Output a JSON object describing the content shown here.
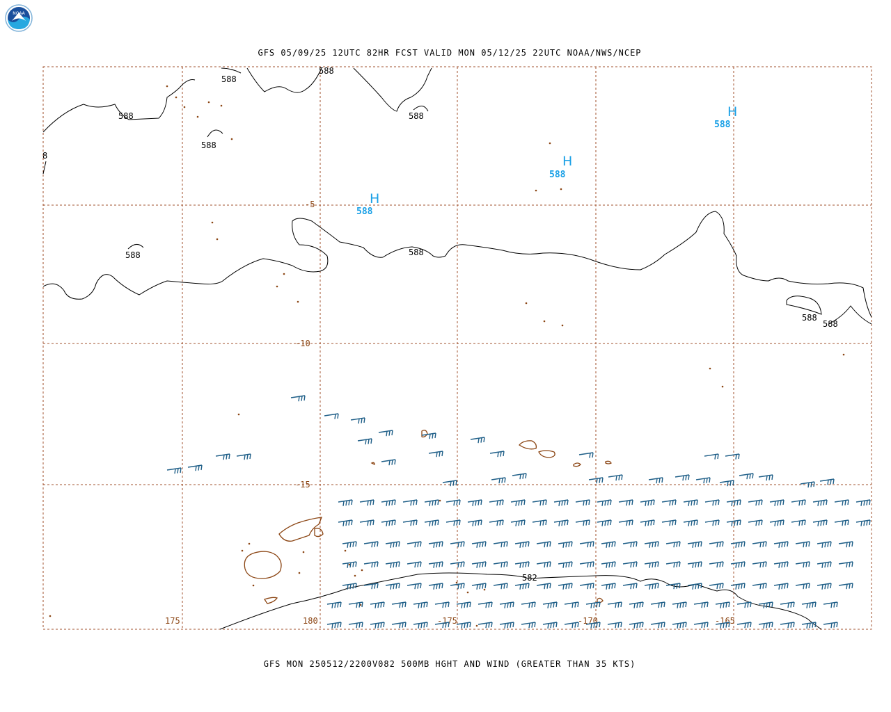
{
  "header": {
    "title": "GFS 05/09/25 12UTC 82HR FCST VALID MON 05/12/25 22UTC NOAA/NWS/NCEP"
  },
  "footer": {
    "title": "GFS MON 250512/2200V082 500MB HGHT AND WIND (GREATER THAN 35 KTS)"
  },
  "logo": {
    "text": "NOAA",
    "icon": "noaa-logo-icon"
  },
  "colors": {
    "grid": "#a0522d",
    "land": "#8B4513",
    "contour": "#000000",
    "wind": "#1f5f88",
    "high": "#1aa0e6"
  },
  "map": {
    "lat_labels": [
      "-5",
      "-10",
      "-15"
    ],
    "lon_labels": [
      "175",
      "180",
      "-175",
      "-170",
      "-165"
    ],
    "contour_labels": {
      "top_left": "588",
      "top_a": "588",
      "top_b": "588",
      "top_c": "588",
      "top_d": "588",
      "edge_left": "8",
      "mid_left": "588",
      "mid_center": "588",
      "right_a": "588",
      "right_b": "588",
      "south": "582"
    },
    "highs": [
      {
        "symbol": "H",
        "value": "588"
      },
      {
        "symbol": "H",
        "value": "588"
      },
      {
        "symbol": "H",
        "value": "588"
      }
    ]
  }
}
